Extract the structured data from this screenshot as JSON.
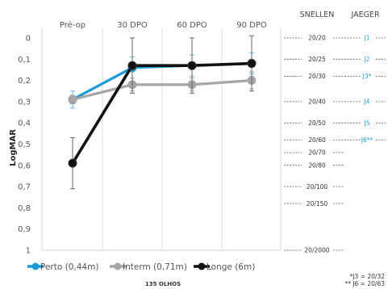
{
  "chart_data": {
    "type": "line",
    "title": "",
    "xlabel": "",
    "ylabel": "LogMAR",
    "categories": [
      "Pré-op",
      "30 DPO",
      "60 DPO",
      "90 DPO"
    ],
    "y_ticks": [
      "0",
      "0,1",
      "0,2",
      "0,3",
      "0,4",
      "0,5",
      "0,6",
      "0,7",
      "0,8",
      "0,9",
      "1"
    ],
    "ylim": [
      0,
      1
    ],
    "y_inverted": true,
    "grid": "vertical",
    "legend_position": "bottom",
    "series": [
      {
        "name": "Perto (0,44m)",
        "color": "#1a9ad6",
        "values": [
          0.29,
          0.14,
          0.13,
          0.12
        ],
        "error": [
          0.04,
          0.05,
          0.05,
          0.05
        ]
      },
      {
        "name": "Interm (0,71m)",
        "color": "#a6a6a6",
        "values": [
          0.29,
          0.22,
          0.22,
          0.2
        ],
        "error": [
          0.02,
          0.03,
          0.03,
          0.04
        ]
      },
      {
        "name": "Longe (6m)",
        "color": "#111111",
        "values": [
          0.59,
          0.13,
          0.13,
          0.12
        ],
        "error": [
          0.12,
          0.13,
          0.13,
          0.13
        ]
      }
    ],
    "scale_headers": {
      "snellen": "SNELLEN",
      "jaeger": "JAEGER"
    },
    "acuity_scale": [
      {
        "logmar": 0.0,
        "snellen": "20/20",
        "jaeger": "J1"
      },
      {
        "logmar": 0.1,
        "snellen": "20/25",
        "jaeger": "J2"
      },
      {
        "logmar": 0.18,
        "snellen": "20/30",
        "jaeger": "J3*"
      },
      {
        "logmar": 0.3,
        "snellen": "20/40",
        "jaeger": "J4"
      },
      {
        "logmar": 0.4,
        "snellen": "20/50",
        "jaeger": "J5"
      },
      {
        "logmar": 0.48,
        "snellen": "20/60",
        "jaeger": "J6**"
      },
      {
        "logmar": 0.54,
        "snellen": "20/70",
        "jaeger": ""
      },
      {
        "logmar": 0.6,
        "snellen": "20/80",
        "jaeger": ""
      },
      {
        "logmar": 0.7,
        "snellen": "20/100",
        "jaeger": ""
      },
      {
        "logmar": 0.78,
        "snellen": "20/150",
        "jaeger": ""
      },
      {
        "logmar": 1.0,
        "snellen": "20/2000",
        "jaeger": ""
      }
    ],
    "footer_label": "135 OLHOS",
    "footnotes": [
      "*J3 = 20/32",
      "** J6 = 20/63"
    ]
  }
}
